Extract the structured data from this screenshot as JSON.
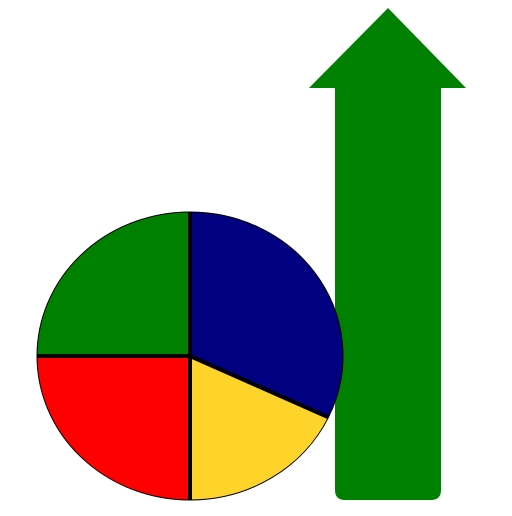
{
  "icon": {
    "name": "pie-chart-growth-arrow-icon",
    "arrow": {
      "name": "up-arrow-icon",
      "color": "#008000"
    },
    "pie": {
      "name": "pie-chart-icon",
      "divider_color": "#000000",
      "slices": [
        {
          "name": "blue-slice",
          "color": "#000080",
          "fraction": 0.32
        },
        {
          "name": "yellow-slice",
          "color": "#FFD42A",
          "fraction": 0.18
        },
        {
          "name": "red-slice",
          "color": "#FF0000",
          "fraction": 0.25
        },
        {
          "name": "green-slice",
          "color": "#008000",
          "fraction": 0.25
        }
      ]
    }
  }
}
